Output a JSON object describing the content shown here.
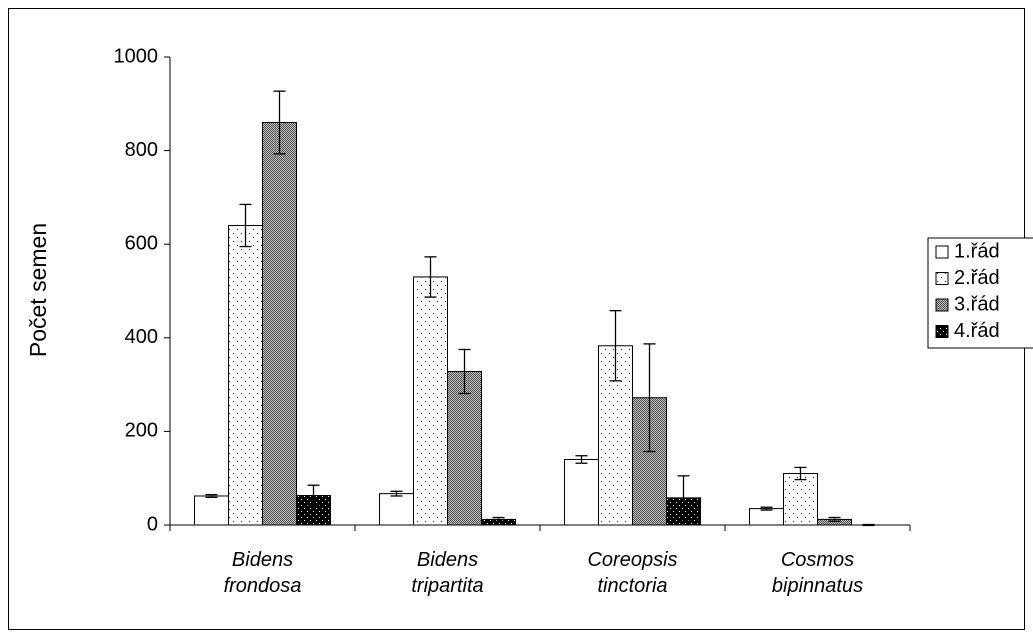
{
  "chart_data": {
    "type": "bar",
    "y_label": "Počet semen",
    "categories": [
      "Bidens frondosa",
      "Bidens tripartita",
      "Coreopsis tinctoria",
      "Cosmos bipinnatus"
    ],
    "series": [
      {
        "name": "1.řád",
        "color": "#ffffff",
        "values": [
          62,
          67,
          140,
          35
        ],
        "errors": [
          3,
          5,
          8,
          3
        ]
      },
      {
        "name": "2.řád",
        "color": "#ffffff",
        "values": [
          640,
          530,
          383,
          110
        ],
        "errors": [
          45,
          43,
          75,
          13
        ]
      },
      {
        "name": "3.řád",
        "color": "#888888",
        "values": [
          860,
          328,
          272,
          12
        ],
        "errors": [
          67,
          47,
          115,
          4
        ]
      },
      {
        "name": "4.řád",
        "color": "#000000",
        "values": [
          63,
          12,
          58,
          0
        ],
        "errors": [
          22,
          4,
          47,
          1
        ]
      }
    ],
    "ylim": [
      0,
      1000
    ],
    "yticks": [
      0,
      200,
      400,
      600,
      800,
      1000
    ],
    "legend": "right"
  }
}
